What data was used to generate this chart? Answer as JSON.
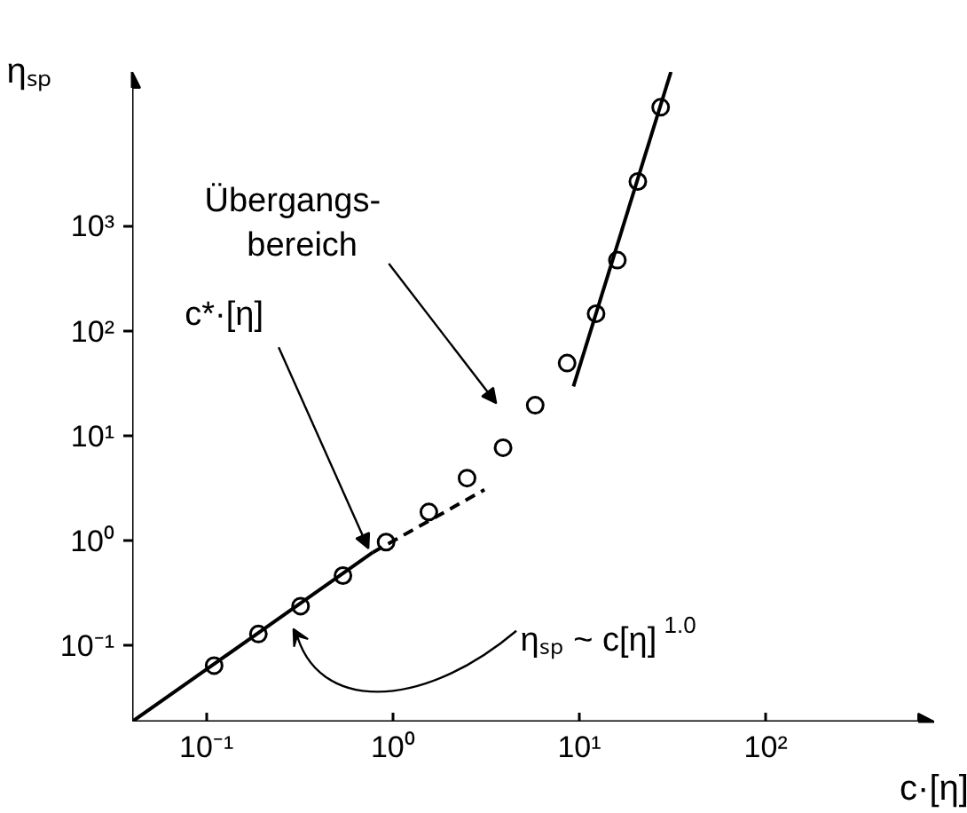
{
  "chart_data": {
    "type": "scatter",
    "xlabel": "c·[η]",
    "ylabel": "ηₛₚ",
    "log": "xy",
    "grid": false,
    "marker": "circle",
    "xlim": [
      0.04,
      800
    ],
    "ylim": [
      0.019,
      30000
    ],
    "xticks": [
      {
        "value": 0.1,
        "label": "10⁻¹"
      },
      {
        "value": 1,
        "label": "10⁰"
      },
      {
        "value": 10,
        "label": "10¹"
      },
      {
        "value": 100,
        "label": "10²"
      }
    ],
    "yticks": [
      {
        "value": 0.1,
        "label": "10⁻¹"
      },
      {
        "value": 1,
        "label": "10⁰"
      },
      {
        "value": 10,
        "label": "10¹"
      },
      {
        "value": 100,
        "label": "10²"
      },
      {
        "value": 1000,
        "label": "10³"
      }
    ],
    "series": [
      {
        "color": "#000000",
        "x": [
          0.11,
          0.19,
          0.32,
          0.54,
          0.92,
          1.56,
          2.5,
          3.9,
          5.8,
          8.6,
          12.3,
          16,
          20.6,
          27.3
        ],
        "values": [
          0.065,
          0.13,
          0.24,
          0.47,
          0.98,
          1.9,
          4.0,
          7.8,
          19.8,
          50,
          148,
          480,
          2700,
          13800
        ]
      },
      {
        "type": "line",
        "color": "#000000",
        "line_style": "solid",
        "marker": "none",
        "x": [
          0.04,
          0.78
        ],
        "values": [
          0.019,
          0.78
        ]
      },
      {
        "type": "line",
        "color": "#000000",
        "line_style": "dashed",
        "marker": "none",
        "x": [
          0.78,
          3.1
        ],
        "values": [
          0.78,
          3.1
        ]
      },
      {
        "type": "line",
        "color": "#000000",
        "line_style": "solid",
        "marker": "none",
        "x": [
          9.3,
          31
        ],
        "values": [
          30,
          30000
        ]
      }
    ],
    "annotations": [
      "Übergangs-\nbereich",
      {
        "text": "c*·[η]",
        "x": 0.74,
        "y": 0.85
      },
      "ηₛₚ ~ c[η] $^{1.0}$"
    ]
  }
}
